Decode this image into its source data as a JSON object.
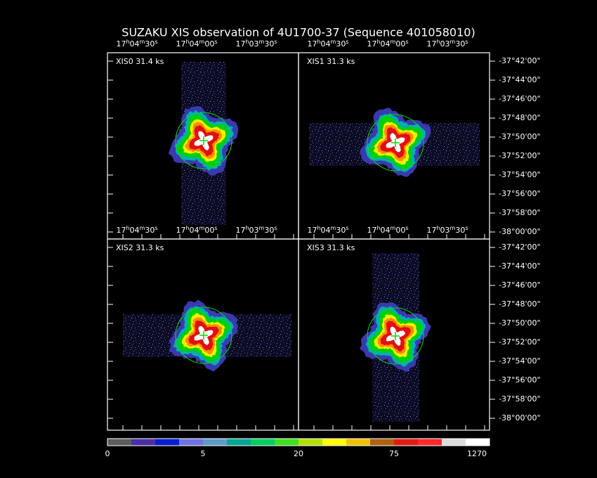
{
  "title": "SUZAKU XIS observation of 4U1700-37  (Sequence 401058010)",
  "panels": [
    {
      "label": "XIS0 31.4 ks"
    },
    {
      "label": "XIS1 31.3 ks"
    },
    {
      "label": "XIS2 31.3 ks"
    },
    {
      "label": "XIS3 31.3 ks"
    }
  ],
  "ra_ticks": [
    [
      "17",
      "h",
      "04",
      "m",
      "30",
      "s"
    ],
    [
      "17",
      "h",
      "04",
      "m",
      "00",
      "s"
    ],
    [
      "17",
      "h",
      "03",
      "m",
      "30",
      "s"
    ]
  ],
  "dec_ticks": [
    "-37°42'00\"",
    "-37°44'00\"",
    "-37°46'00\"",
    "-37°48'00\"",
    "-37°50'00\"",
    "-37°52'00\"",
    "-37°54'00\"",
    "-37°56'00\"",
    "-37°58'00\"",
    "-38°00'00\""
  ],
  "colorbar": {
    "colors": [
      "#5c5c5c",
      "#4a2fa6",
      "#0a1ecf",
      "#7272e6",
      "#5c9cc8",
      "#00a892",
      "#00cf62",
      "#3ee01e",
      "#b2e000",
      "#ffff00",
      "#f0c000",
      "#b06010",
      "#e01e10",
      "#ff2828",
      "#dcdcdc",
      "#ffffff"
    ],
    "labels": [
      "0",
      "5",
      "20",
      "75",
      "1270"
    ]
  }
}
